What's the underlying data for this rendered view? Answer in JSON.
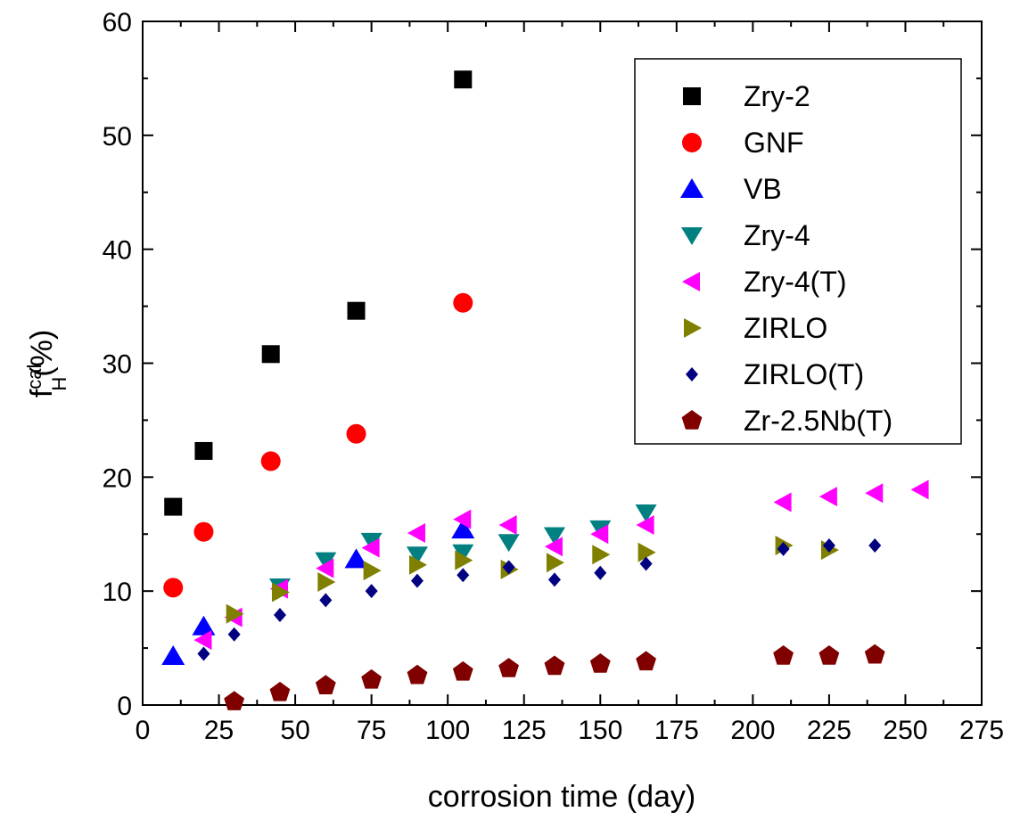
{
  "chart_data": {
    "type": "scatter",
    "xlabel": "corrosion time (day)",
    "ylabel": {
      "base": "f",
      "sup": "cal",
      "sub": "H",
      "tail": "(%)"
    },
    "xlim": [
      0,
      275
    ],
    "ylim": [
      0,
      60
    ],
    "xticks": [
      0,
      25,
      50,
      75,
      100,
      125,
      150,
      175,
      200,
      225,
      250,
      275
    ],
    "yticks": [
      0,
      10,
      20,
      30,
      40,
      50,
      60
    ],
    "grid": false,
    "legend_position": "top-right",
    "series": [
      {
        "name": "Zry-2",
        "marker": "square",
        "color": "#000000",
        "points": [
          [
            10,
            17.4
          ],
          [
            20,
            22.3
          ],
          [
            42,
            30.8
          ],
          [
            70,
            34.6
          ],
          [
            105,
            54.9
          ]
        ]
      },
      {
        "name": "GNF",
        "marker": "circle",
        "color": "#ff0000",
        "points": [
          [
            10,
            10.3
          ],
          [
            20,
            15.2
          ],
          [
            42,
            21.4
          ],
          [
            70,
            23.8
          ],
          [
            105,
            35.3
          ]
        ]
      },
      {
        "name": "VB",
        "marker": "triangle-up",
        "color": "#0000ff",
        "points": [
          [
            10,
            4.3
          ],
          [
            20,
            6.9
          ],
          [
            70,
            12.8
          ],
          [
            105,
            15.4
          ]
        ]
      },
      {
        "name": "Zry-4",
        "marker": "triangle-down",
        "color": "#008080",
        "points": [
          [
            45,
            10.4
          ],
          [
            60,
            12.7
          ],
          [
            75,
            14.4
          ],
          [
            90,
            13.2
          ],
          [
            105,
            13.4
          ],
          [
            120,
            14.3
          ],
          [
            135,
            14.9
          ],
          [
            150,
            15.5
          ],
          [
            165,
            16.9
          ]
        ]
      },
      {
        "name": "Zry-4(T)",
        "marker": "triangle-left",
        "color": "#ff00ff",
        "points": [
          [
            20,
            5.7
          ],
          [
            30,
            7.7
          ],
          [
            45,
            10.2
          ],
          [
            60,
            12.0
          ],
          [
            75,
            13.8
          ],
          [
            90,
            15.1
          ],
          [
            105,
            16.3
          ],
          [
            120,
            15.8
          ],
          [
            135,
            13.9
          ],
          [
            150,
            15.0
          ],
          [
            165,
            15.8
          ],
          [
            210,
            17.8
          ],
          [
            225,
            18.3
          ],
          [
            240,
            18.6
          ],
          [
            255,
            18.9
          ]
        ]
      },
      {
        "name": "ZIRLO",
        "marker": "triangle-right",
        "color": "#808000",
        "points": [
          [
            30,
            8.0
          ],
          [
            45,
            9.9
          ],
          [
            60,
            10.8
          ],
          [
            75,
            11.8
          ],
          [
            90,
            12.3
          ],
          [
            105,
            12.7
          ],
          [
            120,
            11.9
          ],
          [
            135,
            12.5
          ],
          [
            150,
            13.2
          ],
          [
            165,
            13.4
          ],
          [
            210,
            14.0
          ],
          [
            225,
            13.6
          ]
        ]
      },
      {
        "name": "ZIRLO(T)",
        "marker": "diamond",
        "color": "#000080",
        "points": [
          [
            20,
            4.5
          ],
          [
            30,
            6.2
          ],
          [
            45,
            7.9
          ],
          [
            60,
            9.2
          ],
          [
            75,
            10.0
          ],
          [
            90,
            10.9
          ],
          [
            105,
            11.4
          ],
          [
            120,
            12.1
          ],
          [
            135,
            11.0
          ],
          [
            150,
            11.6
          ],
          [
            165,
            12.4
          ],
          [
            210,
            13.7
          ],
          [
            225,
            14.0
          ],
          [
            240,
            14.0
          ]
        ]
      },
      {
        "name": "Zr-2.5Nb(T)",
        "marker": "pentagon",
        "color": "#800000",
        "points": [
          [
            30,
            0.3
          ],
          [
            45,
            1.1
          ],
          [
            60,
            1.7
          ],
          [
            75,
            2.2
          ],
          [
            90,
            2.6
          ],
          [
            105,
            2.9
          ],
          [
            120,
            3.2
          ],
          [
            135,
            3.4
          ],
          [
            150,
            3.6
          ],
          [
            165,
            3.8
          ],
          [
            210,
            4.3
          ],
          [
            225,
            4.3
          ],
          [
            240,
            4.4
          ]
        ]
      }
    ]
  }
}
